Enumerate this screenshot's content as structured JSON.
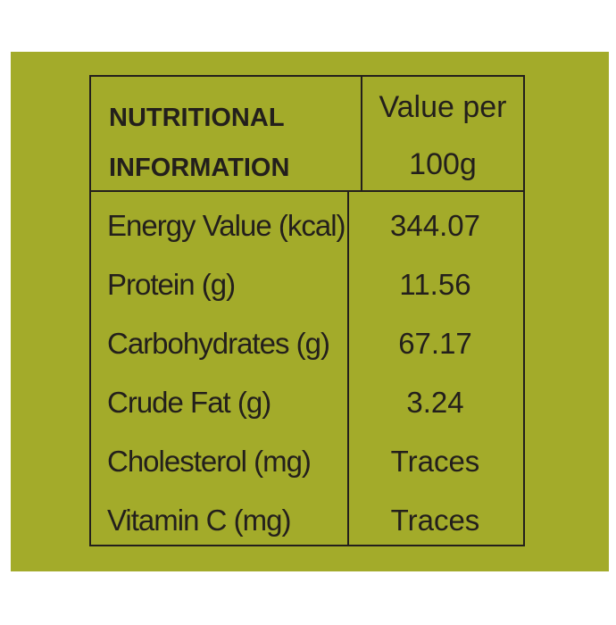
{
  "table": {
    "header": [
      [
        "NUTRITIONAL",
        "INFORMATION"
      ],
      [
        "Value per",
        "100g"
      ]
    ],
    "rows": [
      [
        "Energy Value (kcal)",
        "344.07"
      ],
      [
        "Protein (g)",
        "11.56"
      ],
      [
        "Carbohydrates (g)",
        "67.17"
      ],
      [
        "Crude Fat (g)",
        "3.24"
      ],
      [
        "Cholesterol (mg)",
        "Traces"
      ],
      [
        "Vitamin C (mg)",
        "Traces"
      ]
    ]
  }
}
